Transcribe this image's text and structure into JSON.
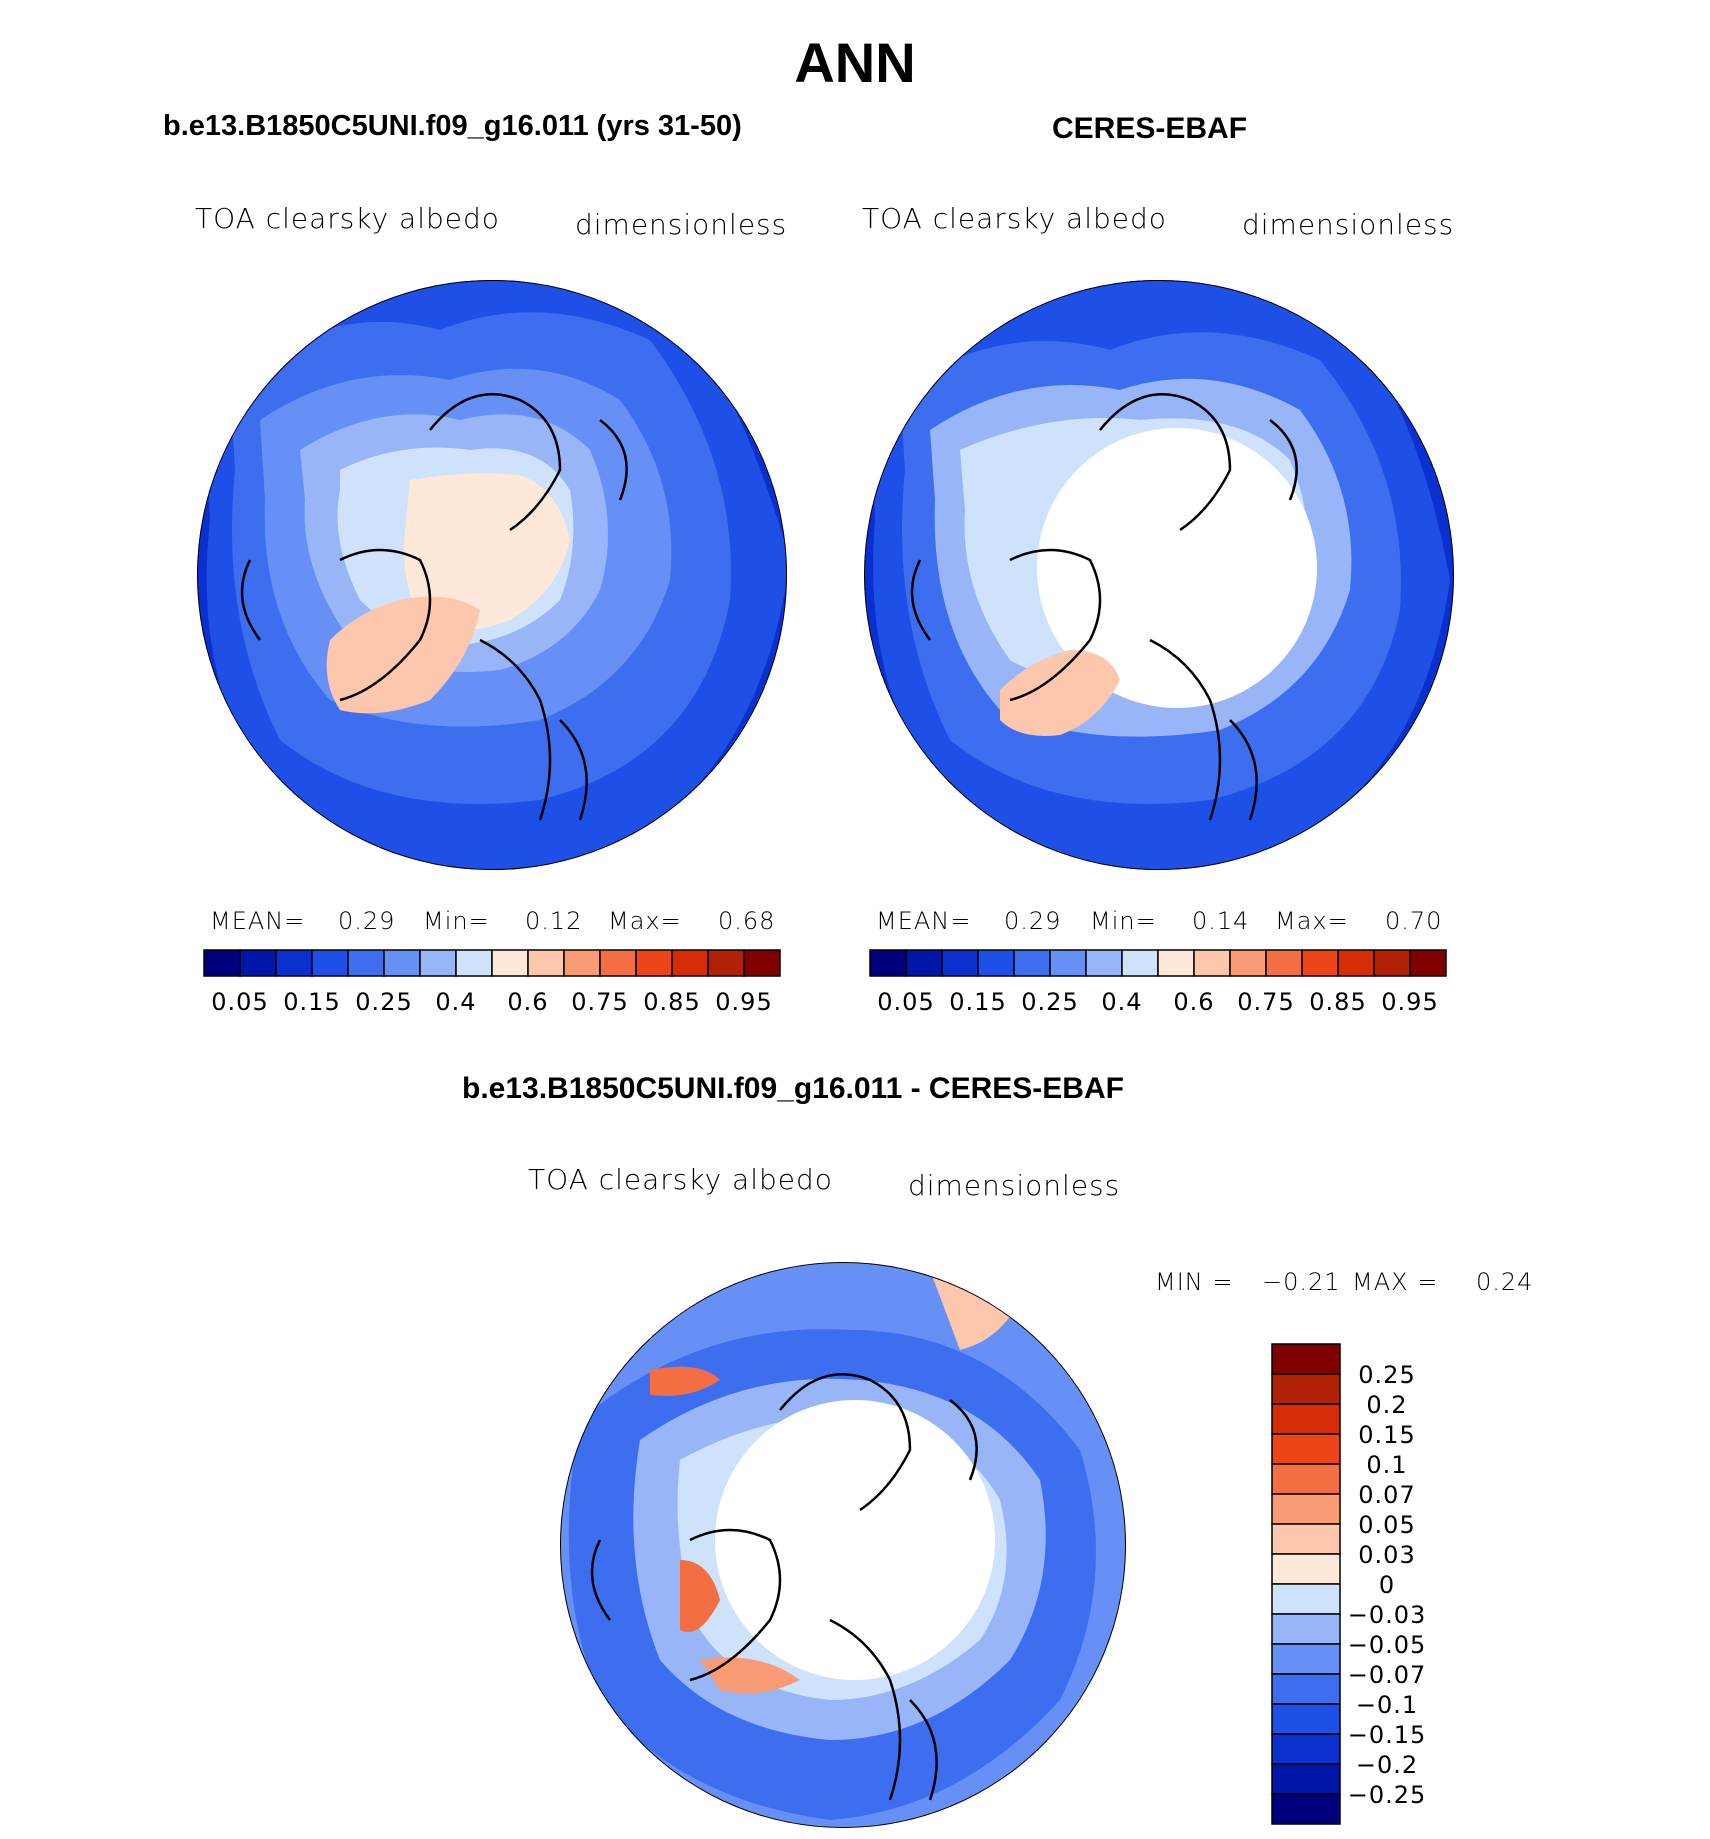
{
  "title": "ANN",
  "panels": [
    {
      "case": "b.e13.B1850C5UNI.f09_g16.011 (yrs 31-50)",
      "variable": "TOA clearsky albedo",
      "units": "dimensionless",
      "stats": {
        "mean_label": "MEAN=",
        "mean": "0.29",
        "min_label": "Min=",
        "min": "0.12",
        "max_label": "Max=",
        "max": "0.68"
      }
    },
    {
      "case": "CERES-EBAF",
      "variable": "TOA clearsky albedo",
      "units": "dimensionless",
      "stats": {
        "mean_label": "MEAN=",
        "mean": "0.29",
        "min_label": "Min=",
        "min": "0.14",
        "max_label": "Max=",
        "max": "0.70"
      }
    }
  ],
  "diff_panel": {
    "case": "b.e13.B1850C5UNI.f09_g16.011 - CERES-EBAF",
    "variable": "TOA clearsky albedo",
    "units": "dimensionless",
    "min_label": "MIN =",
    "min": "−0.21",
    "max_label": "MAX =",
    "max": "0.24"
  },
  "colorbar": {
    "colors": [
      "#00007f",
      "#0016a8",
      "#0a30cf",
      "#1e4fe6",
      "#3d6ef0",
      "#6690f5",
      "#98b5f8",
      "#cfe2fb",
      "#fde8da",
      "#fcc7ac",
      "#f99b74",
      "#f46e44",
      "#ec4518",
      "#d42d06",
      "#b02105",
      "#800000"
    ],
    "labels": [
      "0.05",
      "0.15",
      "0.25",
      "0.4",
      "0.6",
      "0.75",
      "0.85",
      "0.95"
    ]
  },
  "diff_colorbar": {
    "colors": [
      "#800000",
      "#b02105",
      "#d42d06",
      "#ec4518",
      "#f46e44",
      "#f99b74",
      "#fcc7ac",
      "#fde8da",
      "#cfe2fb",
      "#98b5f8",
      "#6690f5",
      "#3d6ef0",
      "#1e4fe6",
      "#0a30cf",
      "#0016a8",
      "#00007f"
    ],
    "labels": [
      "0.25",
      "0.2",
      "0.15",
      "0.1",
      "0.07",
      "0.05",
      "0.03",
      "0",
      "−0.03",
      "−0.05",
      "−0.07",
      "−0.1",
      "−0.15",
      "−0.2",
      "−0.25"
    ]
  },
  "palette": {
    "deep": "#0a30cf",
    "mid": "#3d6ef0",
    "light": "#6690f5",
    "pale": "#98b5f8",
    "paler": "#cfe2fb",
    "peach": "#fde8da",
    "salmon": "#fcc7ac",
    "orange": "#f46e44"
  }
}
